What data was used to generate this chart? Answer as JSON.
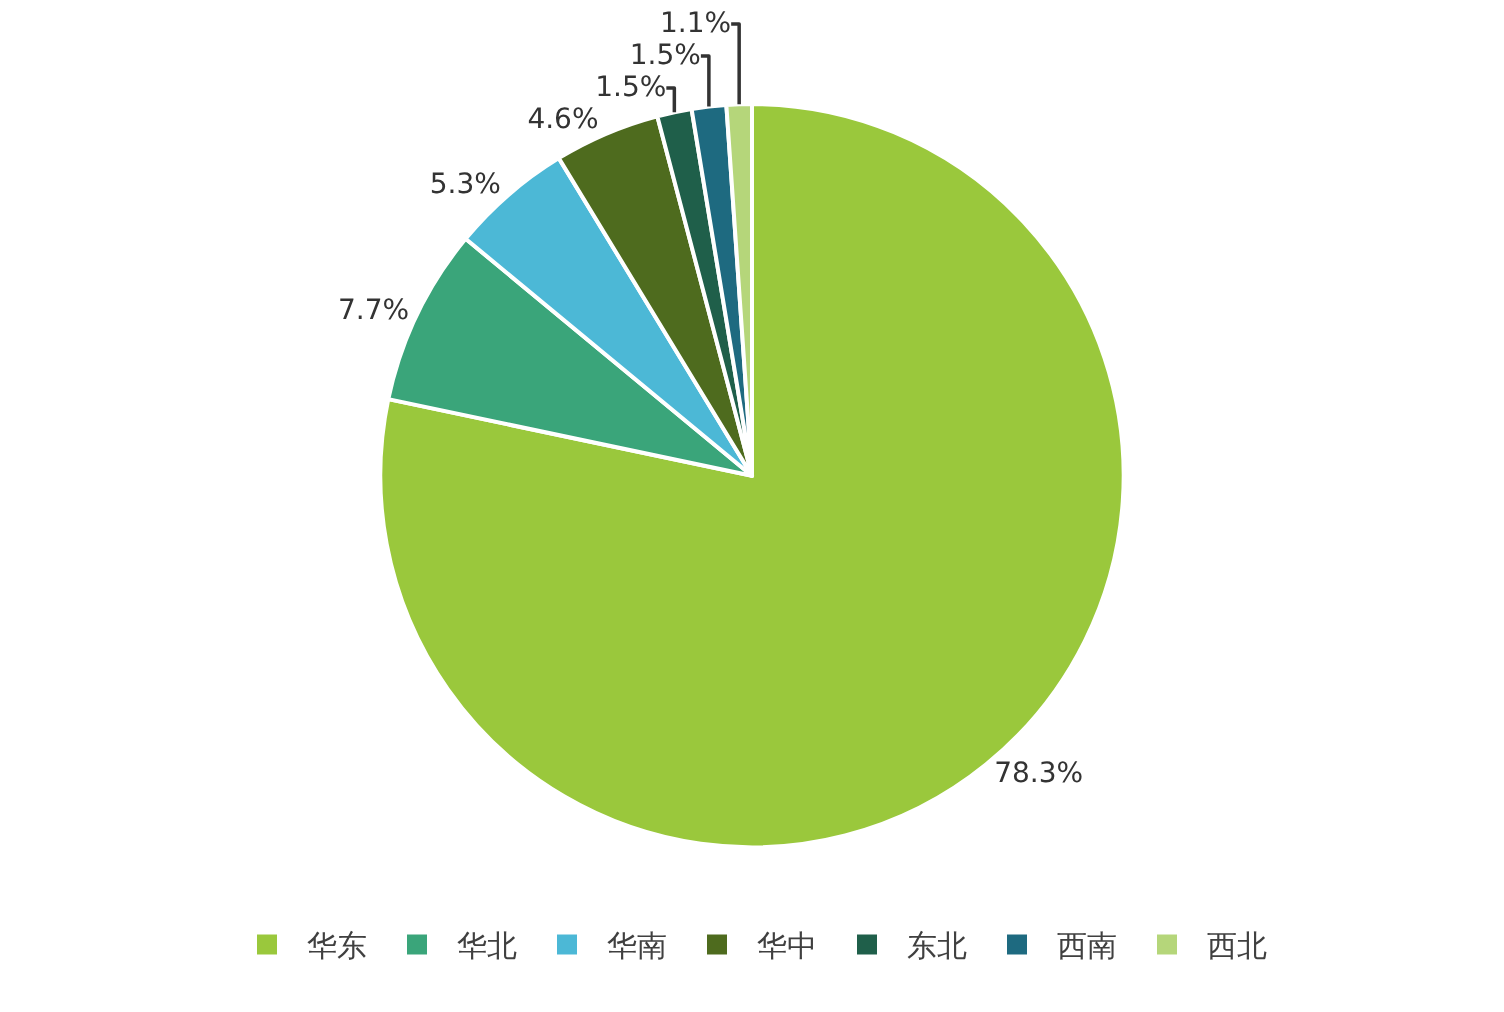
{
  "chart_data": {
    "type": "pie",
    "categories": [
      "华东",
      "华北",
      "华南",
      "华中",
      "东北",
      "西南",
      "西北"
    ],
    "values": [
      78.3,
      7.7,
      5.3,
      4.6,
      1.5,
      1.5,
      1.1
    ],
    "value_labels": [
      "78.3%",
      "7.7%",
      "5.3%",
      "4.6%",
      "1.5%",
      "1.5%",
      "1.1%"
    ],
    "colors": [
      "#9ac83c",
      "#3aa57a",
      "#4cb8d6",
      "#4e6b1e",
      "#1f5f4a",
      "#1e6a80",
      "#b5d67a"
    ],
    "legend": "bottom"
  }
}
